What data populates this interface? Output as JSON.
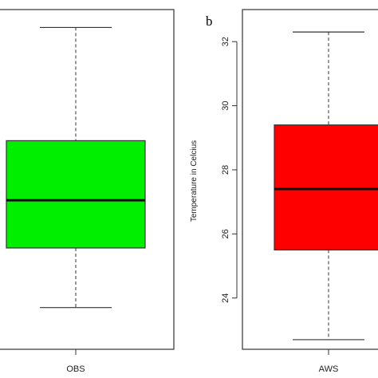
{
  "chart_data": [
    {
      "type": "box",
      "panel_label": "",
      "categories": [
        "OBS"
      ],
      "boxes": [
        {
          "name": "OBS",
          "whisker_low": 24.0,
          "q1": 26.0,
          "median": 27.6,
          "q3": 29.6,
          "whisker_high": 33.4,
          "color": "#00ee00"
        }
      ],
      "ylim": [
        22.6,
        34.0
      ],
      "yticks": [],
      "ylabel": ""
    },
    {
      "type": "box",
      "panel_label": "b",
      "categories": [
        "AWS"
      ],
      "boxes": [
        {
          "name": "AWS",
          "whisker_low": 22.7,
          "q1": 25.5,
          "median": 27.4,
          "q3": 29.4,
          "whisker_high": 32.3,
          "color": "#ff0000"
        }
      ],
      "ylim": [
        22.4,
        33.0
      ],
      "yticks": [
        24,
        26,
        28,
        30,
        32
      ],
      "ylabel": "Temperature in Celcius"
    }
  ]
}
